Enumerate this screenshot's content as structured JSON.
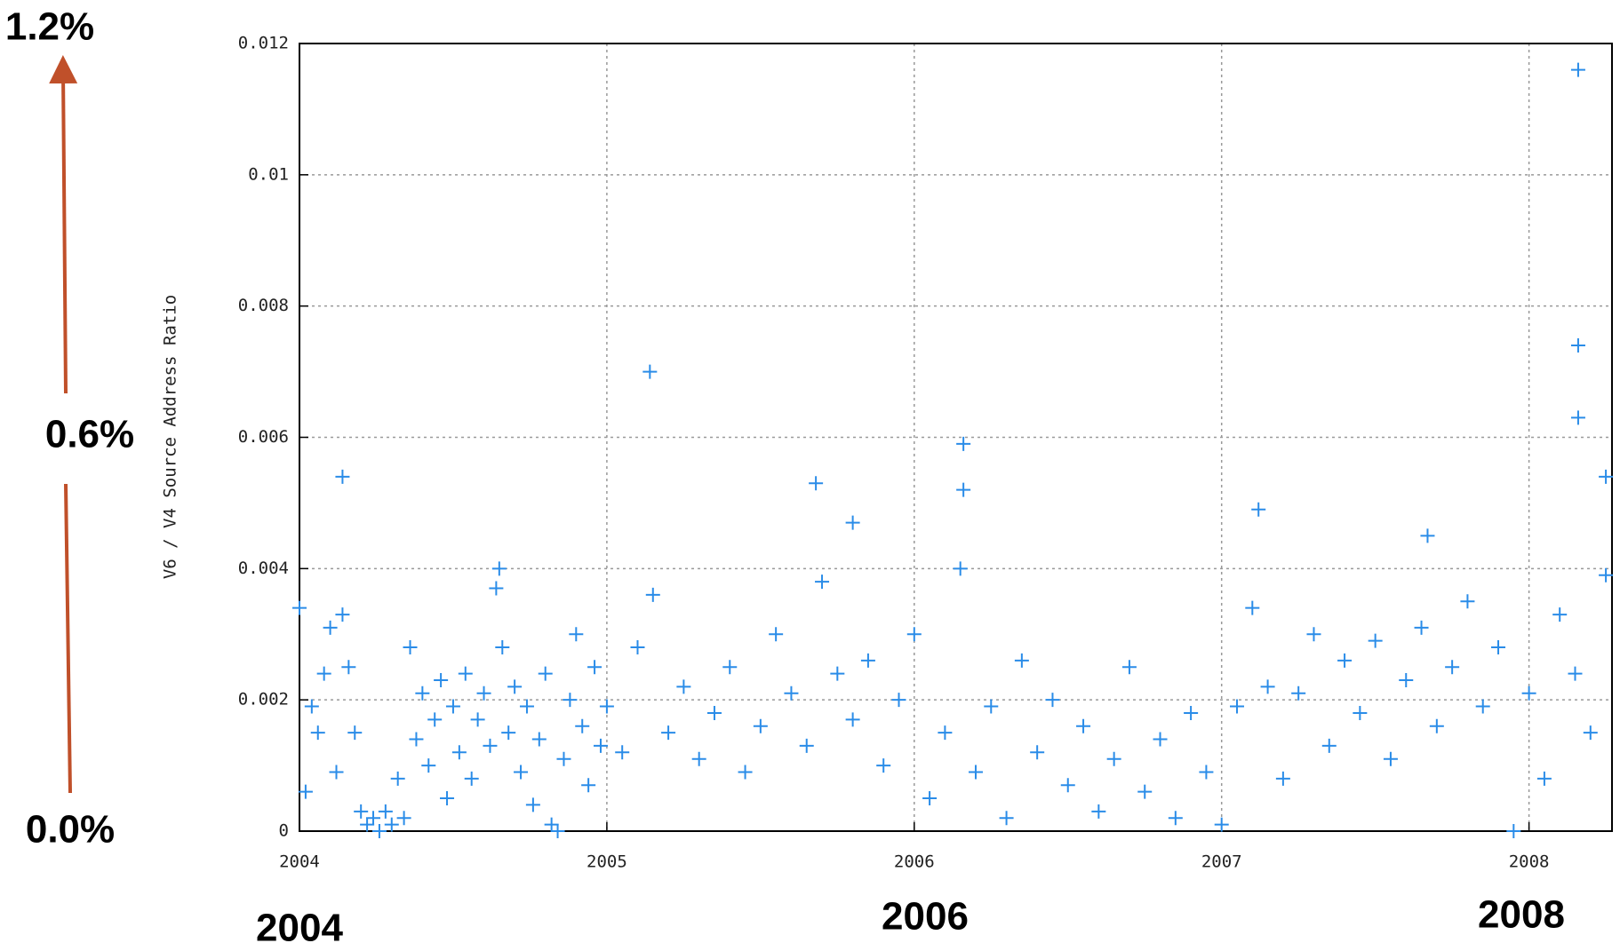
{
  "chart_data": {
    "type": "scatter",
    "y_label": "V6 / V4 Source Address Ratio",
    "annotations": {
      "top": "1.2%",
      "middle": "0.6%",
      "bottom": "0.0%",
      "year_left": "2004",
      "year_middle": "2006",
      "year_right": "2008"
    },
    "xlim": [
      2004,
      2008.27
    ],
    "xticks": [
      2004,
      2005,
      2006,
      2007,
      2008
    ],
    "ylim": [
      0,
      0.012
    ],
    "yticks": [
      0,
      0.002,
      0.004,
      0.006,
      0.008,
      0.01,
      0.012
    ],
    "grid": true,
    "color": "#2a8ce8",
    "x": [
      2004.0,
      2004.02,
      2004.04,
      2004.06,
      2004.08,
      2004.1,
      2004.12,
      2004.14,
      2004.16,
      2004.18,
      2004.2,
      2004.22,
      2004.24,
      2004.26,
      2004.28,
      2004.3,
      2004.32,
      2004.34,
      2004.36,
      2004.38,
      2004.4,
      2004.42,
      2004.44,
      2004.46,
      2004.48,
      2004.5,
      2004.52,
      2004.54,
      2004.56,
      2004.58,
      2004.6,
      2004.62,
      2004.64,
      2004.66,
      2004.68,
      2004.7,
      2004.72,
      2004.74,
      2004.76,
      2004.78,
      2004.8,
      2004.82,
      2004.84,
      2004.86,
      2004.88,
      2004.9,
      2004.92,
      2004.94,
      2004.96,
      2004.98,
      2005.0,
      2005.05,
      2005.1,
      2005.15,
      2005.2,
      2005.25,
      2005.3,
      2005.35,
      2005.4,
      2005.45,
      2005.5,
      2005.55,
      2005.6,
      2005.65,
      2005.7,
      2005.75,
      2005.8,
      2005.85,
      2005.9,
      2005.95,
      2006.0,
      2006.05,
      2006.1,
      2006.15,
      2006.2,
      2006.25,
      2006.3,
      2006.35,
      2006.4,
      2006.45,
      2006.5,
      2006.55,
      2006.6,
      2006.65,
      2006.7,
      2006.75,
      2006.8,
      2006.85,
      2006.9,
      2006.95,
      2007.0,
      2007.05,
      2007.1,
      2007.15,
      2007.2,
      2007.25,
      2007.3,
      2007.35,
      2007.4,
      2007.45,
      2007.5,
      2007.55,
      2007.6,
      2007.65,
      2007.7,
      2007.75,
      2007.8,
      2007.85,
      2007.9,
      2007.95,
      2008.0,
      2008.05,
      2008.1,
      2008.15,
      2008.2,
      2008.25,
      2004.14,
      2005.14,
      2005.68,
      2005.8,
      2006.16,
      2006.16,
      2007.12,
      2007.67,
      2008.16,
      2008.16,
      2008.16,
      2004.65,
      2008.25
    ],
    "values": [
      0.0034,
      0.0006,
      0.0019,
      0.0015,
      0.0024,
      0.0031,
      0.0009,
      0.0033,
      0.0025,
      0.0015,
      0.0003,
      0.0001,
      0.0002,
      0,
      0.0003,
      0.0001,
      0.0008,
      0.0002,
      0.0028,
      0.0014,
      0.0021,
      0.001,
      0.0017,
      0.0023,
      0.0005,
      0.0019,
      0.0012,
      0.0024,
      0.0008,
      0.0017,
      0.0021,
      0.0013,
      0.0037,
      0.0028,
      0.0015,
      0.0022,
      0.0009,
      0.0019,
      0.0004,
      0.0014,
      0.0024,
      0.0001,
      0,
      0.0011,
      0.002,
      0.003,
      0.0016,
      0.0007,
      0.0025,
      0.0013,
      0.0019,
      0.0012,
      0.0028,
      0.0036,
      0.0015,
      0.0022,
      0.0011,
      0.0018,
      0.0025,
      0.0009,
      0.0016,
      0.003,
      0.0021,
      0.0013,
      0.0038,
      0.0024,
      0.0017,
      0.0026,
      0.001,
      0.002,
      0.003,
      0.0005,
      0.0015,
      0.004,
      0.0009,
      0.0019,
      0.0002,
      0.0026,
      0.0012,
      0.002,
      0.0007,
      0.0016,
      0.0003,
      0.0011,
      0.0025,
      0.0006,
      0.0014,
      0.0002,
      0.0018,
      0.0009,
      0.0001,
      0.0019,
      0.0034,
      0.0022,
      0.0008,
      0.0021,
      0.003,
      0.0013,
      0.0026,
      0.0018,
      0.0029,
      0.0011,
      0.0023,
      0.0031,
      0.0016,
      0.0025,
      0.0035,
      0.0019,
      0.0028,
      0,
      0.0021,
      0.0008,
      0.0033,
      0.0024,
      0.0015,
      0.0039,
      0.0054,
      0.007,
      0.0053,
      0.0047,
      0.0059,
      0.0052,
      0.0049,
      0.0045,
      0.0116,
      0.0074,
      0.0063,
      0.004,
      0.0054
    ]
  }
}
